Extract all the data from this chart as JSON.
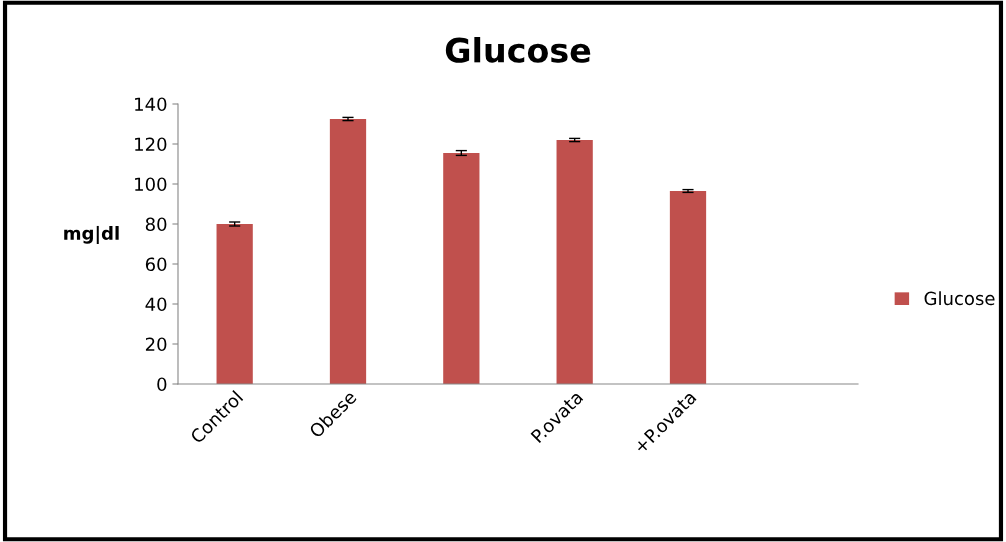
{
  "chart_data": {
    "type": "bar",
    "title": "Glucose",
    "ylabel": "mg|dl",
    "categories": [
      "Control",
      "Obese",
      null,
      "P.ovata",
      "+P.ovata",
      null
    ],
    "series": [
      {
        "name": "Glucose",
        "color": "#c0504d",
        "values": [
          80,
          132.5,
          115.5,
          122,
          96.5,
          null
        ],
        "errors": [
          1,
          0.8,
          1.2,
          0.8,
          0.7,
          null
        ]
      }
    ],
    "ylim": [
      0,
      140
    ],
    "yticks": [
      0,
      20,
      40,
      60,
      80,
      100,
      120,
      140
    ],
    "grid": false,
    "legend": "right"
  }
}
